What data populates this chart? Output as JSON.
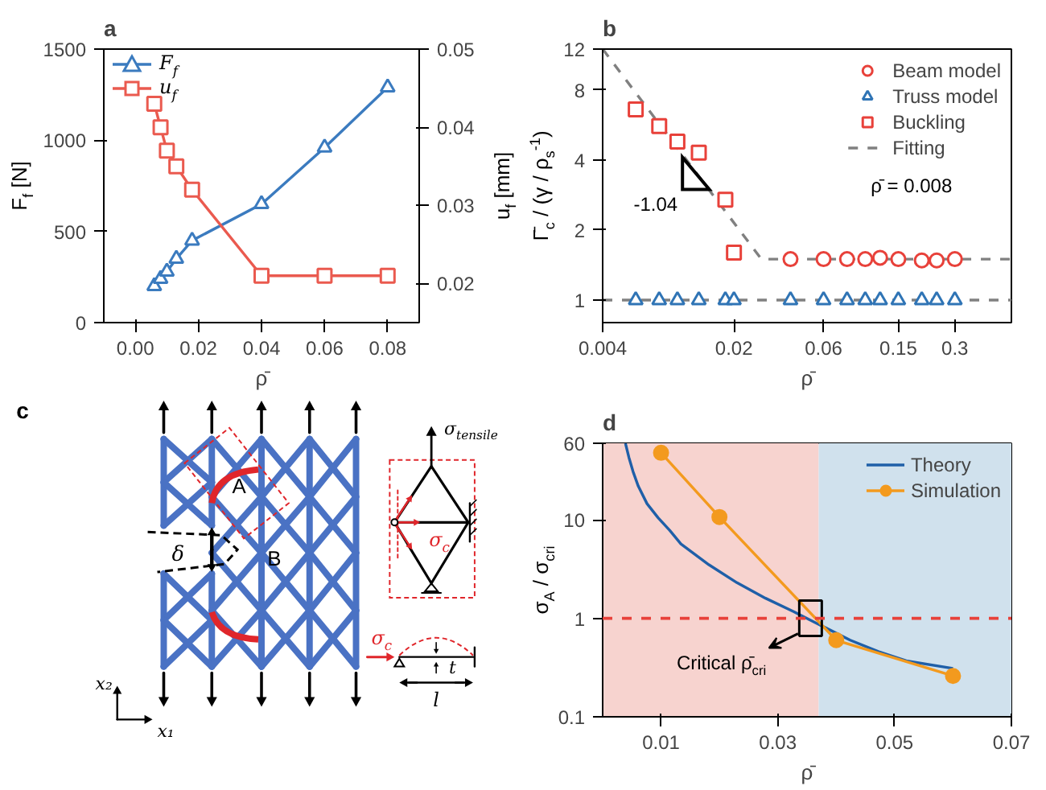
{
  "chart_data": [
    {
      "type": "line",
      "title": "a",
      "xlabel": "ρ̄",
      "ylabel": "F$_{f}$ [N]",
      "y2label": "u$_{f}$ [mm]",
      "x": [
        0.006,
        0.008,
        0.01,
        0.013,
        0.018,
        0.04,
        0.06,
        0.08
      ],
      "series": [
        {
          "name": "F$_{f}$",
          "color": "#3b7bbf",
          "marker": "triangle",
          "values": [
            200,
            240,
            280,
            350,
            450,
            650,
            960,
            1290
          ]
        },
        {
          "name": "u$_{f}$",
          "color": "#ea5a4f",
          "marker": "square",
          "axis": "y2",
          "values": [
            0.043,
            0.04,
            0.037,
            0.035,
            0.032,
            0.021,
            0.021,
            0.021
          ]
        }
      ],
      "xlim": [
        -0.01,
        0.09
      ],
      "xticks": [
        {
          "value": 0,
          "label": "0.00"
        },
        0.02,
        0.04,
        0.06,
        0.08
      ],
      "ylim": [
        0,
        1500
      ],
      "yticks": [
        0,
        500,
        1000,
        1500
      ],
      "y2lim": [
        0.015,
        0.05
      ],
      "y2ticks": [
        0.02,
        0.03,
        0.04,
        0.05
      ],
      "legend": "top left"
    },
    {
      "type": "scatter",
      "title": "b",
      "xlabel": "ρ̄",
      "ylabel": "Γ̄$_{c}$ / (γ / ρ$_{s}$$^{-1}$)",
      "log": "xy",
      "series": [
        {
          "name": "Beam model",
          "color": "#e8413a",
          "marker": "circle",
          "x": [
            0.04,
            0.06,
            0.08,
            0.1,
            0.12,
            0.15,
            0.2,
            0.24,
            0.3
          ],
          "values": [
            1.5,
            1.5,
            1.5,
            1.5,
            1.52,
            1.5,
            1.48,
            1.48,
            1.5
          ]
        },
        {
          "name": "Truss model",
          "color": "#2f74b5",
          "marker": "triangle",
          "x": [
            0.006,
            0.008,
            0.01,
            0.013,
            0.018,
            0.02,
            0.04,
            0.06,
            0.08,
            0.1,
            0.12,
            0.15,
            0.2,
            0.24,
            0.3
          ],
          "values": [
            1,
            1,
            1,
            1,
            1,
            1,
            1,
            1,
            1,
            1,
            1,
            1,
            1,
            1,
            1
          ]
        },
        {
          "name": "Buckling",
          "color": "#e8413a",
          "marker": "square",
          "x": [
            0.006,
            0.008,
            0.01,
            0.013,
            0.018,
            0.02
          ],
          "values": [
            6.6,
            5.6,
            4.8,
            4.3,
            2.7,
            1.6
          ]
        },
        {
          "name": "Fitting",
          "type": "line",
          "color": "#808080",
          "line_style": "dashed",
          "marker": "none",
          "x": [
            0.004,
            0.028,
            0.6
          ],
          "values": [
            12,
            1.5,
            1.5
          ]
        },
        {
          "type": "line",
          "color": "#808080",
          "line_style": "dashed",
          "marker": "none",
          "x": [
            0.004,
            0.6
          ],
          "values": [
            1,
            1
          ]
        }
      ],
      "xlim": [
        0.004,
        0.6
      ],
      "xticks": [
        0.004,
        0.02,
        0.06,
        0.15,
        0.3
      ],
      "ylim": [
        0.8,
        12
      ],
      "yticks": [
        1,
        2,
        4,
        8,
        12
      ],
      "legend": "top right",
      "annotations": [
        {
          "text": "-1.04",
          "x": 0.0105,
          "y": 4.1
        },
        "ρ̄ = 0.008"
      ]
    },
    {
      "type": "other",
      "title": "c",
      "annotations": [
        "σ$_{tensile}$",
        "A",
        "σ$_{c}$",
        "δ",
        "B",
        "σ$_{c}$",
        "t",
        "x₂",
        "l",
        "x₁"
      ]
    },
    {
      "type": "line",
      "title": "d",
      "xlabel": "ρ̄",
      "ylabel": "σ$_{A}$ / σ$_{cri}$",
      "log": "y",
      "series": [
        {
          "name": "Theory",
          "color": "#1f5fa8",
          "marker": "none",
          "x": [
            0.0039,
            0.0045,
            0.0052,
            0.0061,
            0.0076,
            0.0095,
            0.0115,
            0.0134,
            0.0182,
            0.023,
            0.0279,
            0.0327,
            0.0375,
            0.0424,
            0.0472,
            0.052,
            0.06
          ],
          "values": [
            60,
            43,
            31,
            22,
            14.6,
            10.5,
            7.8,
            5.7,
            3.5,
            2.3,
            1.6,
            1.17,
            0.84,
            0.6,
            0.46,
            0.37,
            0.31
          ]
        },
        {
          "name": "Simulation",
          "color": "#f39a1e",
          "marker": "circle",
          "x": [
            0.01,
            0.02,
            0.04,
            0.06
          ],
          "values": [
            48,
            10.7,
            0.6,
            0.26
          ]
        }
      ],
      "xlim": [
        0,
        0.07
      ],
      "xticks": [
        0.01,
        0.03,
        0.05,
        0.07
      ],
      "ylim": [
        0.1,
        60
      ],
      "yticks": [
        0.1,
        1,
        10,
        60
      ],
      "ref_lines": [
        {
          "axis": "y",
          "value": 1,
          "color": "#e8413a",
          "line_style": "dashed"
        }
      ],
      "bands": [
        {
          "axis": "x",
          "from": 0,
          "to": 0.037,
          "color": "#f7d3cf"
        },
        {
          "axis": "x",
          "from": 0.037,
          "to": 0.07,
          "color": "#d0e1ed"
        }
      ],
      "legend": "top right",
      "annotations": [
        {
          "text": "Critical ρ̄$_{cri}$",
          "x": 0.0356,
          "y": 1
        }
      ]
    }
  ]
}
